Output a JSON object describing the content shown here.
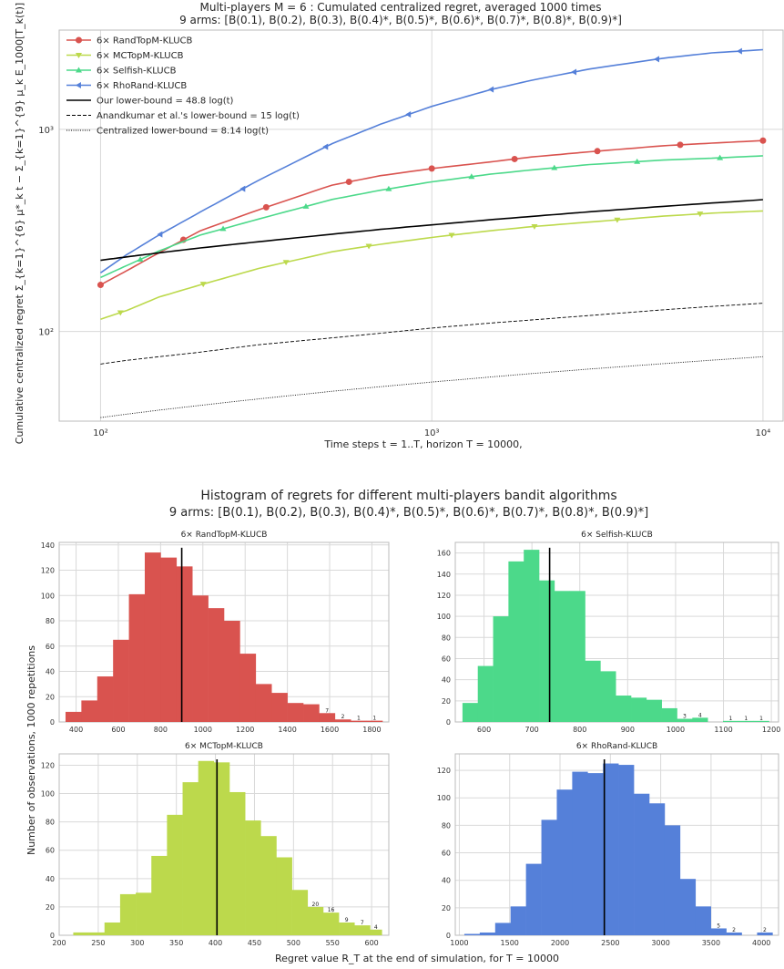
{
  "colors": {
    "RandTopM": "#d9534f",
    "MCTopM": "#bcd94c",
    "Selfish": "#4cd98a",
    "RhoRand": "#5580d9"
  },
  "chart_data": [
    {
      "type": "line",
      "title_line1": "Multi-players M = 6 : Cumulated centralized regret, averaged 1000 times",
      "title_line2": "9 arms: [B(0.1), B(0.2), B(0.3), B(0.4)*, B(0.5)*, B(0.6)*, B(0.7)*, B(0.8)*, B(0.9)*]",
      "xlabel": "Time steps t = 1..T, horizon T = 10000,",
      "ylabel": "Cumulative centralized regret Σ_{k=1}^{6} μ*_k t − Σ_{k=1}^{9} μ_k E_1000[T_k(t)]",
      "x_scale": "log",
      "y_scale": "log",
      "xlim": [
        75,
        11500
      ],
      "ylim": [
        36,
        3100
      ],
      "x_ticks": [
        100,
        1000,
        10000
      ],
      "x_tick_labels": [
        "10²",
        "10³",
        "10⁴"
      ],
      "y_ticks": [
        100,
        1000
      ],
      "y_tick_labels": [
        "10²",
        "10³"
      ],
      "grid": true,
      "legend": "top-left",
      "x": [
        100,
        120,
        150,
        200,
        300,
        500,
        700,
        1000,
        1500,
        2000,
        3000,
        5000,
        7000,
        10000
      ],
      "series": [
        {
          "name": "6× RandTopM-KLUCB",
          "key": "RandTopM",
          "marker": "circle",
          "dash": "",
          "values": [
            170,
            200,
            245,
            315,
            400,
            530,
            590,
            640,
            690,
            730,
            775,
            830,
            855,
            880
          ]
        },
        {
          "name": "6× MCTopM-KLUCB",
          "key": "MCTopM",
          "marker": "triangle-down",
          "dash": "",
          "values": [
            115,
            127,
            148,
            170,
            205,
            248,
            270,
            292,
            315,
            330,
            348,
            372,
            385,
            395
          ]
        },
        {
          "name": "6× Selfish-KLUCB",
          "key": "Selfish",
          "marker": "triangle-up",
          "dash": "",
          "values": [
            185,
            212,
            250,
            300,
            360,
            450,
            500,
            550,
            600,
            630,
            670,
            705,
            720,
            740
          ]
        },
        {
          "name": "6× RhoRand-KLUCB",
          "key": "RhoRand",
          "marker": "triangle-left",
          "dash": "",
          "values": [
            195,
            240,
            300,
            390,
            560,
            850,
            1060,
            1300,
            1570,
            1750,
            1990,
            2250,
            2390,
            2480
          ]
        },
        {
          "name": "Our lower-bound = 48.8 log(t)",
          "key": "black",
          "marker": "",
          "dash": "",
          "values": [
            225,
            234,
            245,
            259,
            278,
            303,
            320,
            337,
            357,
            371,
            391,
            416,
            432,
            449
          ]
        },
        {
          "name": "Anandkumar et al.'s lower-bound = 15 log(t)",
          "key": "black",
          "marker": "",
          "dash": "4,2",
          "values": [
            69,
            72,
            75,
            79,
            86,
            93,
            98,
            104,
            110,
            114,
            120,
            128,
            133,
            138
          ]
        },
        {
          "name": "Centralized lower-bound = 8.14 log(t)",
          "key": "black",
          "marker": "",
          "dash": "1,1.5",
          "values": [
            37.5,
            39,
            40.8,
            43.1,
            46.4,
            50.6,
            53.3,
            56.2,
            59.5,
            61.9,
            65.2,
            69.3,
            72.1,
            75
          ]
        }
      ]
    },
    {
      "type": "bar",
      "subtitle": "6× RandTopM-KLUCB",
      "key": "RandTopM",
      "xlim": [
        320,
        1880
      ],
      "ylim": [
        0,
        142
      ],
      "x_ticks": [
        400,
        600,
        800,
        1000,
        1200,
        1400,
        1600,
        1800
      ],
      "y_ticks": [
        0,
        20,
        40,
        60,
        80,
        100,
        120,
        140
      ],
      "bin_edges": [
        350,
        425,
        500,
        575,
        650,
        725,
        800,
        875,
        950,
        1025,
        1100,
        1175,
        1250,
        1325,
        1400,
        1475,
        1550,
        1625,
        1700,
        1775,
        1850
      ],
      "counts": [
        8,
        17,
        36,
        65,
        101,
        134,
        130,
        123,
        100,
        90,
        80,
        54,
        30,
        23,
        15,
        14,
        7,
        2,
        1,
        1
      ],
      "count_labels": [
        "7",
        "2",
        "1",
        "1"
      ],
      "mean": 900
    },
    {
      "type": "bar",
      "subtitle": "6× Selfish-KLUCB",
      "key": "Selfish",
      "xlim": [
        540,
        1215
      ],
      "ylim": [
        0,
        170
      ],
      "x_ticks": [
        600,
        700,
        800,
        900,
        1000,
        1100,
        1200
      ],
      "y_ticks": [
        0,
        20,
        40,
        60,
        80,
        100,
        120,
        140,
        160
      ],
      "bin_edges": [
        555,
        587,
        619,
        651,
        683,
        715,
        747,
        779,
        811,
        843,
        875,
        907,
        939,
        971,
        1003,
        1035,
        1067,
        1099,
        1131,
        1163,
        1195
      ],
      "counts": [
        18,
        53,
        100,
        152,
        163,
        134,
        124,
        124,
        58,
        48,
        25,
        23,
        21,
        13,
        3,
        4,
        0,
        1,
        1,
        1
      ],
      "count_labels": [
        "3",
        "4",
        "1",
        "1",
        "1"
      ],
      "mean": 737
    },
    {
      "type": "bar",
      "subtitle": "6× MCTopM-KLUCB",
      "key": "MCTopM",
      "xlim": [
        200,
        622
      ],
      "ylim": [
        0,
        128
      ],
      "x_ticks": [
        200,
        250,
        300,
        350,
        400,
        450,
        500,
        550,
        600
      ],
      "y_ticks": [
        0,
        20,
        40,
        60,
        80,
        100,
        120
      ],
      "bin_edges": [
        218,
        238,
        258,
        278,
        298,
        318,
        338,
        358,
        378,
        398,
        418,
        438,
        458,
        478,
        498,
        518,
        538,
        558,
        578,
        598,
        613
      ],
      "counts": [
        2,
        2,
        9,
        29,
        30,
        56,
        85,
        108,
        123,
        122,
        101,
        81,
        70,
        55,
        32,
        20,
        16,
        9,
        7,
        4
      ],
      "count_labels": [
        "20",
        "16",
        "9",
        "7",
        "4"
      ],
      "mean": 402
    },
    {
      "type": "bar",
      "subtitle": "6× RhoRand-KLUCB",
      "key": "RhoRand",
      "xlim": [
        960,
        4170
      ],
      "ylim": [
        0,
        132
      ],
      "x_ticks": [
        1000,
        1500,
        2000,
        2500,
        3000,
        3500,
        4000
      ],
      "y_ticks": [
        0,
        20,
        40,
        60,
        80,
        100,
        120
      ],
      "bin_edges": [
        1050,
        1203,
        1356,
        1509,
        1662,
        1815,
        1968,
        2121,
        2274,
        2427,
        2580,
        2733,
        2886,
        3039,
        3192,
        3345,
        3498,
        3651,
        3804,
        3957,
        4110
      ],
      "counts": [
        1,
        2,
        9,
        21,
        52,
        84,
        106,
        119,
        118,
        125,
        124,
        103,
        96,
        80,
        41,
        21,
        5,
        2,
        0,
        2
      ],
      "count_labels": [
        "5",
        "2",
        "2"
      ],
      "mean": 2440
    }
  ],
  "histograms": {
    "title_line1": "Histogram of regrets for different multi-players bandit algorithms",
    "title_line2": "9 arms: [B(0.1), B(0.2), B(0.3), B(0.4)*, B(0.5)*, B(0.6)*, B(0.7)*, B(0.8)*, B(0.9)*]",
    "ylabel": "Number of observations, 1000 repetitions",
    "xlabel": "Regret value R_T at the end of simulation, for T = 10000"
  }
}
